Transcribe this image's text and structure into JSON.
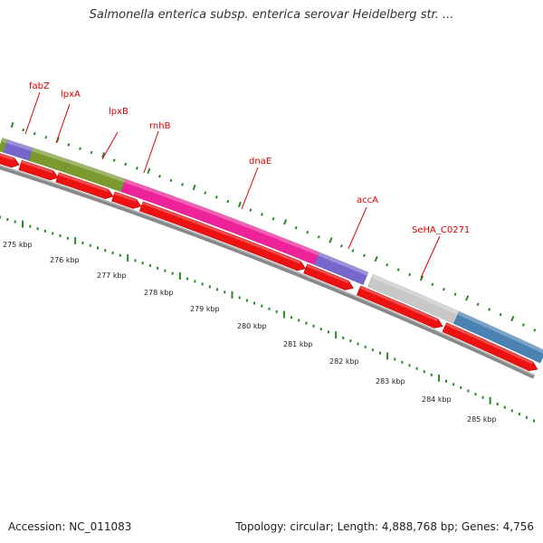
{
  "title": "Salmonella enterica subsp. enterica serovar Heidelberg str. ...",
  "footer": {
    "accession": "Accession: NC_011083",
    "topology": "Topology: circular; Length: 4,888,768 bp; Genes: 4,756"
  },
  "colors": {
    "label": "#dd0000",
    "tick": "#2a8a2a",
    "strand": "#ee1111",
    "backbone": "#888888"
  },
  "genes": [
    {
      "name": "fabZ",
      "color": "#7766cc"
    },
    {
      "name": "lpxA",
      "color": "#7a9a30"
    },
    {
      "name": "lpxB",
      "color": "#7a9a30"
    },
    {
      "name": "rnhB",
      "color": "#ee2299"
    },
    {
      "name": "dnaE",
      "color": "#ee2299"
    },
    {
      "name": "accA",
      "color": "#7766cc"
    },
    {
      "name": "SeHA_C0271",
      "color": "#c8c8c8"
    },
    {
      "name": "",
      "color": "#4a82b4"
    }
  ],
  "scale_labels": [
    "275 kbp",
    "276 kbp",
    "277 kbp",
    "278 kbp",
    "279 kbp",
    "280 kbp",
    "281 kbp",
    "282 kbp",
    "283 kbp",
    "284 kbp",
    "285 kbp"
  ]
}
